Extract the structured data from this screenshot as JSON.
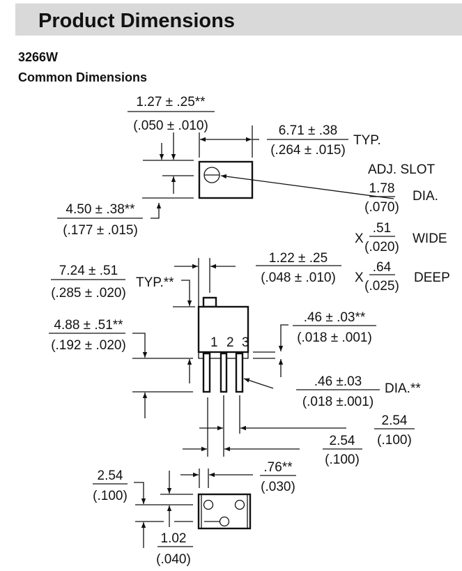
{
  "header": {
    "title": "Product Dimensions",
    "background": "#d9d9d9"
  },
  "model": "3266W",
  "section": "Common Dimensions",
  "dims": {
    "a_top": "1.27 ± .25**",
    "a_bot": "(.050 ± .010)",
    "b_top": "6.71 ± .38",
    "b_bot": "(.264 ± .015)",
    "b_suffix": "TYP.",
    "c_top": "4.50 ± .38**",
    "c_bot": "(.177 ± .015)",
    "slot_label": "ADJ. SLOT",
    "slot_dia_top": "1.78",
    "slot_dia_bot": "(.070)",
    "slot_dia_suffix": "DIA.",
    "slot_wide_prefix": "X",
    "slot_wide_top": ".51",
    "slot_wide_bot": "(.020)",
    "slot_wide_suffix": "WIDE",
    "slot_deep_prefix": "X",
    "slot_deep_top": ".64",
    "slot_deep_bot": "(.025)",
    "slot_deep_suffix": "DEEP",
    "d_top": "1.22 ± .25",
    "d_bot": "(.048 ± .010)",
    "e_top": "7.24 ± .51",
    "e_bot": "(.285 ± .020)",
    "e_suffix": "TYP.**",
    "f_top": "4.88 ± .51**",
    "f_bot": "(.192 ± .020)",
    "g_top": ".46 ± .03**",
    "g_bot": "(.018 ± .001)",
    "h_top": ".46 ±.03",
    "h_bot": "(.018 ±.001)",
    "h_suffix": "DIA.**",
    "i_top": "2.54",
    "i_bot": "(.100)",
    "j_top": "2.54",
    "j_bot": "(.100)",
    "k_top": ".76**",
    "k_bot": "(.030)",
    "l_top": "2.54",
    "l_bot": "(.100)",
    "m_top": "1.02",
    "m_bot": "(.040)"
  },
  "pins": [
    "1",
    "2",
    "3"
  ]
}
